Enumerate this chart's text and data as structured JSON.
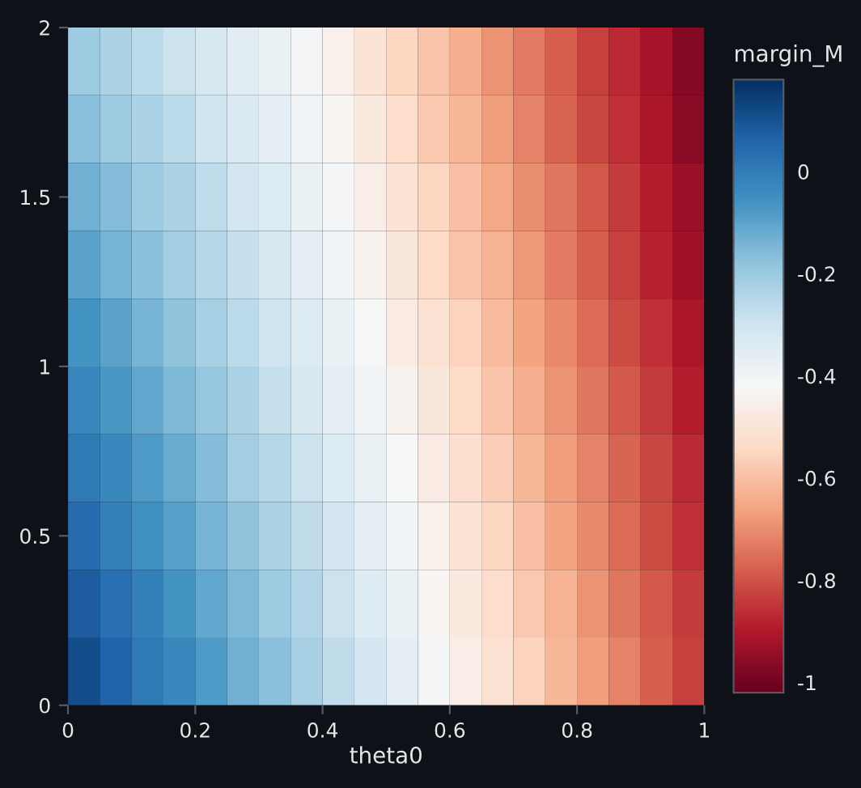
{
  "chart_data": {
    "type": "heatmap",
    "xlabel": "theta0",
    "clabel": "margin_M",
    "x": [
      0.025,
      0.075,
      0.125,
      0.175,
      0.225,
      0.275,
      0.325,
      0.375,
      0.425,
      0.475,
      0.525,
      0.575,
      0.625,
      0.675,
      0.725,
      0.775,
      0.825,
      0.875,
      0.925,
      0.975
    ],
    "y": [
      1.9,
      1.7,
      1.5,
      1.3,
      1.1,
      0.9,
      0.7,
      0.5,
      0.3,
      0.1
    ],
    "xlim": [
      0,
      1
    ],
    "xticks": [
      0,
      0.2,
      0.4,
      0.6,
      0.8,
      1
    ],
    "ylim": [
      0,
      2
    ],
    "yticks": [
      0,
      0.5,
      1,
      1.5,
      2
    ],
    "clim": [
      -1.02,
      0.18
    ],
    "cticks": [
      0,
      -0.2,
      -0.4,
      -0.6,
      -0.8,
      -1
    ],
    "grid": false,
    "cells": [
      [
        -0.2,
        -0.23,
        -0.26,
        -0.29,
        -0.32,
        -0.35,
        -0.38,
        -0.41,
        -0.45,
        -0.5,
        -0.55,
        -0.59,
        -0.64,
        -0.69,
        -0.73,
        -0.78,
        -0.83,
        -0.87,
        -0.92,
        -0.97
      ],
      [
        -0.17,
        -0.2,
        -0.23,
        -0.26,
        -0.3,
        -0.33,
        -0.36,
        -0.4,
        -0.43,
        -0.48,
        -0.53,
        -0.58,
        -0.62,
        -0.67,
        -0.72,
        -0.77,
        -0.82,
        -0.86,
        -0.91,
        -0.96
      ],
      [
        -0.13,
        -0.16,
        -0.2,
        -0.23,
        -0.27,
        -0.31,
        -0.34,
        -0.38,
        -0.41,
        -0.46,
        -0.5,
        -0.55,
        -0.6,
        -0.65,
        -0.7,
        -0.74,
        -0.79,
        -0.84,
        -0.89,
        -0.94
      ],
      [
        -0.1,
        -0.14,
        -0.17,
        -0.21,
        -0.25,
        -0.28,
        -0.32,
        -0.36,
        -0.4,
        -0.44,
        -0.49,
        -0.54,
        -0.59,
        -0.63,
        -0.68,
        -0.73,
        -0.78,
        -0.83,
        -0.88,
        -0.93
      ],
      [
        -0.06,
        -0.1,
        -0.14,
        -0.18,
        -0.22,
        -0.26,
        -0.3,
        -0.34,
        -0.38,
        -0.42,
        -0.47,
        -0.51,
        -0.56,
        -0.61,
        -0.66,
        -0.71,
        -0.76,
        -0.81,
        -0.86,
        -0.91
      ],
      [
        -0.03,
        -0.07,
        -0.11,
        -0.15,
        -0.19,
        -0.23,
        -0.28,
        -0.32,
        -0.36,
        -0.4,
        -0.44,
        -0.49,
        -0.54,
        -0.59,
        -0.64,
        -0.69,
        -0.74,
        -0.79,
        -0.84,
        -0.89
      ],
      [
        0.01,
        -0.03,
        -0.08,
        -0.12,
        -0.16,
        -0.21,
        -0.25,
        -0.29,
        -0.34,
        -0.38,
        -0.42,
        -0.47,
        -0.52,
        -0.57,
        -0.62,
        -0.67,
        -0.72,
        -0.77,
        -0.82,
        -0.87
      ],
      [
        0.04,
        -0.01,
        -0.05,
        -0.09,
        -0.14,
        -0.18,
        -0.23,
        -0.27,
        -0.31,
        -0.36,
        -0.4,
        -0.45,
        -0.5,
        -0.55,
        -0.6,
        -0.66,
        -0.71,
        -0.76,
        -0.81,
        -0.86
      ],
      [
        0.08,
        0.03,
        -0.01,
        -0.06,
        -0.11,
        -0.15,
        -0.2,
        -0.24,
        -0.29,
        -0.34,
        -0.38,
        -0.43,
        -0.48,
        -0.53,
        -0.58,
        -0.63,
        -0.69,
        -0.74,
        -0.79,
        -0.84
      ],
      [
        0.11,
        0.06,
        0.01,
        -0.03,
        -0.08,
        -0.13,
        -0.17,
        -0.22,
        -0.27,
        -0.31,
        -0.36,
        -0.41,
        -0.46,
        -0.51,
        -0.56,
        -0.62,
        -0.67,
        -0.72,
        -0.78,
        -0.83
      ]
    ]
  }
}
